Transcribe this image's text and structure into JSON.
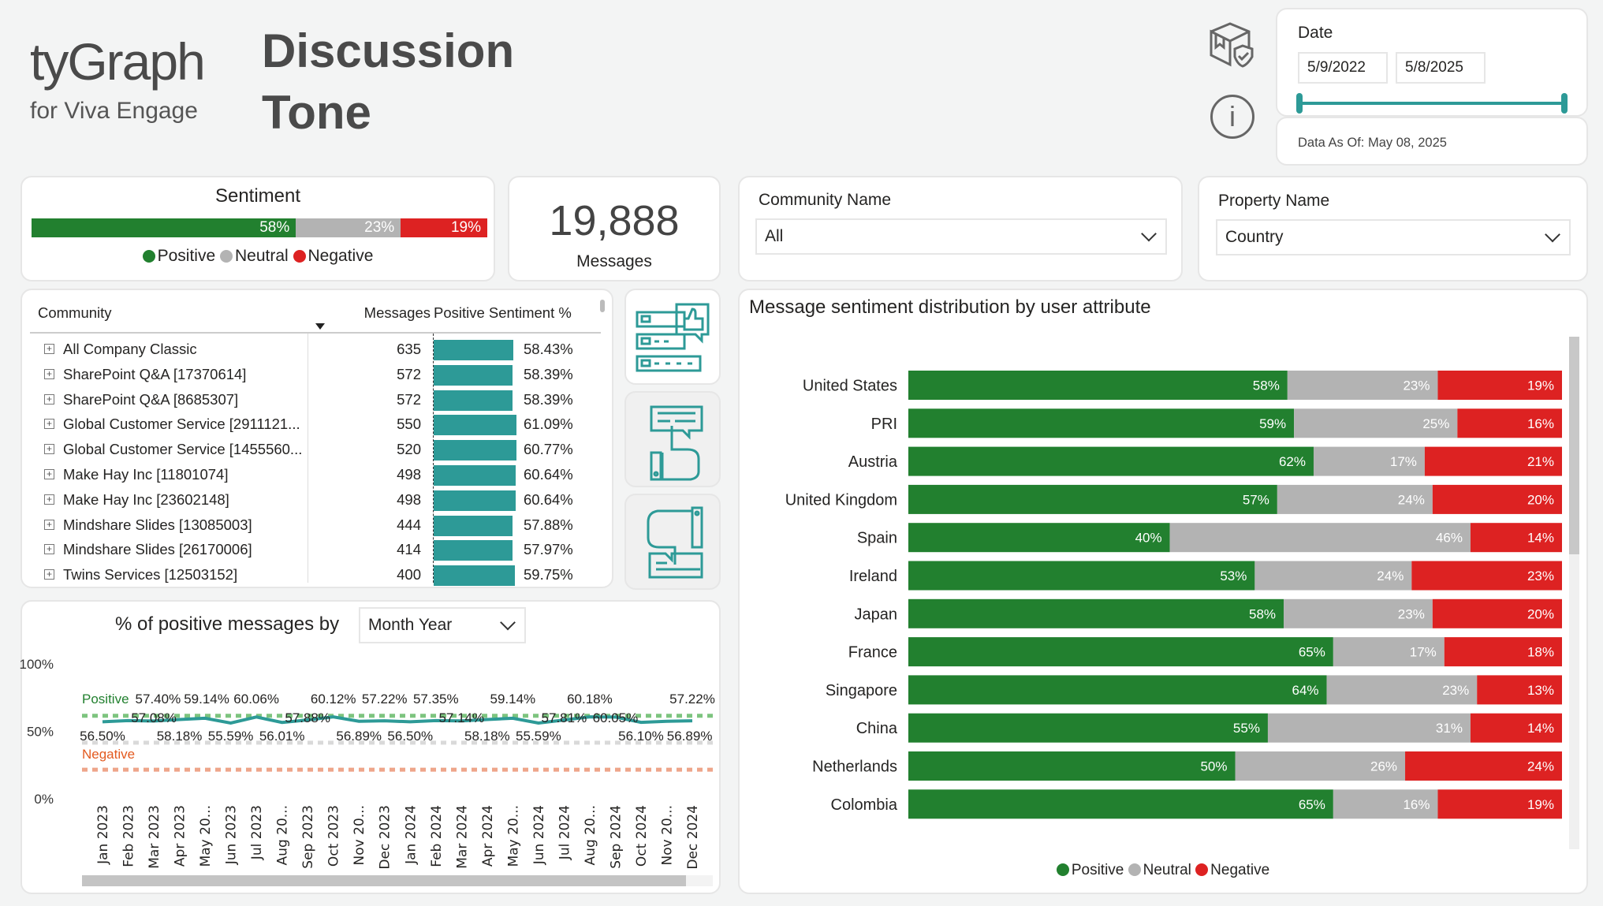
{
  "header": {
    "logo_text": "tyGraph",
    "logo_sub": "for Viva Engage",
    "title_line1": "Discussion",
    "title_line2": "Tone"
  },
  "icons": {
    "package": "package-shield-icon",
    "info": "info-icon"
  },
  "date_filter": {
    "label": "Date",
    "start": "5/9/2022",
    "end": "5/8/2025",
    "range_fraction": [
      0,
      1
    ],
    "data_as_of": "Data As Of: May 08, 2025"
  },
  "sentiment": {
    "title": "Sentiment",
    "positive": 58,
    "neutral": 23,
    "negative": 19,
    "positive_label": "58%",
    "neutral_label": "23%",
    "negative_label": "19%",
    "legend": [
      "Positive",
      "Neutral",
      "Negative"
    ]
  },
  "messages": {
    "value": "19,888",
    "label": "Messages"
  },
  "community_filter": {
    "label": "Community Name",
    "value": "All"
  },
  "property_filter": {
    "label": "Property Name",
    "value": "Country"
  },
  "colors": {
    "positive": "#22802f",
    "neutral": "#b3b3b3",
    "negative": "#dd2222",
    "accent": "#2d9a97"
  },
  "table": {
    "headers": [
      "Community",
      "Messages",
      "Positive Sentiment %"
    ],
    "rows": [
      {
        "name": "All Company Classic",
        "messages": "635",
        "pct": "58.43%",
        "value": 58.43
      },
      {
        "name": "SharePoint Q&A [17370614]",
        "messages": "572",
        "pct": "58.39%",
        "value": 58.39
      },
      {
        "name": "SharePoint Q&A [8685307]",
        "messages": "572",
        "pct": "58.39%",
        "value": 58.39
      },
      {
        "name": "Global Customer Service [2911121...",
        "messages": "550",
        "pct": "61.09%",
        "value": 61.09
      },
      {
        "name": "Global Customer Service [1455560...",
        "messages": "520",
        "pct": "60.77%",
        "value": 60.77
      },
      {
        "name": "Make Hay Inc [11801074]",
        "messages": "498",
        "pct": "60.64%",
        "value": 60.64
      },
      {
        "name": "Make Hay Inc [23602148]",
        "messages": "498",
        "pct": "60.64%",
        "value": 60.64
      },
      {
        "name": "Mindshare Slides [13085003]",
        "messages": "444",
        "pct": "57.88%",
        "value": 57.88
      },
      {
        "name": "Mindshare Slides [26170006]",
        "messages": "414",
        "pct": "57.97%",
        "value": 57.97
      },
      {
        "name": "Twins Services [12503152]",
        "messages": "400",
        "pct": "59.75%",
        "value": 59.75
      }
    ]
  },
  "side_buttons": [
    "feedback-list-icon",
    "thumbs-up-icon",
    "thumbs-down-icon"
  ],
  "chart_data": [
    {
      "type": "line",
      "title": "% of positive messages by",
      "dropdown_value": "Month Year",
      "yticks": [
        "100%",
        "50%",
        "0%"
      ],
      "ylim": [
        0,
        100
      ],
      "categories": [
        "Jan 2023",
        "Feb 2023",
        "Mar 2023",
        "Apr 2023",
        "May 20...",
        "Jun 2023",
        "Jul 2023",
        "Aug 20...",
        "Sep 2023",
        "Oct 2023",
        "Nov 20...",
        "Dec 2023",
        "Jan 2024",
        "Feb 2024",
        "Mar 2024",
        "Apr 2024",
        "May 20...",
        "Jun 2024",
        "Jul 2024",
        "Aug 20...",
        "Sep 2024",
        "Oct 2024",
        "Nov 20...",
        "Dec 2024"
      ],
      "values": [
        56.5,
        57.4,
        57.08,
        58.18,
        59.14,
        55.59,
        60.06,
        56.01,
        57.88,
        60.12,
        56.89,
        57.22,
        56.5,
        57.35,
        57.14,
        58.18,
        59.14,
        55.59,
        57.81,
        60.18,
        60.05,
        56.1,
        56.89,
        57.22
      ],
      "labels": [
        "56.50%",
        "57.40%",
        "57.08%",
        "58.18%",
        "59.14%",
        "55.59%",
        "60.06%",
        "56.01%",
        "57.88%",
        "60.12%",
        "56.89%",
        "57.22%",
        "56.50%",
        "57.35%",
        "57.14%",
        "58.18%",
        "59.14%",
        "55.59%",
        "57.81%",
        "60.18%",
        "60.05%",
        "56.10%",
        "56.89%",
        "57.22%"
      ],
      "reference_lines": [
        {
          "label": "Positive",
          "value": 61,
          "color": "#7dc47f"
        },
        {
          "label": "",
          "value": 41,
          "color": "#d9d9d9"
        },
        {
          "label": "Negative",
          "value": 21,
          "color": "#eea58a"
        }
      ]
    },
    {
      "type": "bar",
      "stacked": "100%",
      "orientation": "horizontal",
      "title": "Message sentiment distribution by user attribute",
      "categories": [
        "United States",
        "PRI",
        "Austria",
        "United Kingdom",
        "Spain",
        "Ireland",
        "Japan",
        "France",
        "Singapore",
        "China",
        "Netherlands",
        "Colombia"
      ],
      "series": [
        {
          "name": "Positive",
          "values": [
            58,
            59,
            62,
            57,
            40,
            53,
            58,
            65,
            64,
            55,
            50,
            65
          ]
        },
        {
          "name": "Neutral",
          "values": [
            23,
            25,
            17,
            24,
            46,
            24,
            23,
            17,
            23,
            31,
            26,
            16
          ]
        },
        {
          "name": "Negative",
          "values": [
            19,
            16,
            21,
            20,
            14,
            23,
            20,
            18,
            13,
            14,
            24,
            19
          ]
        }
      ],
      "legend": [
        "Positive",
        "Neutral",
        "Negative"
      ],
      "legend_position": "bottom"
    }
  ]
}
